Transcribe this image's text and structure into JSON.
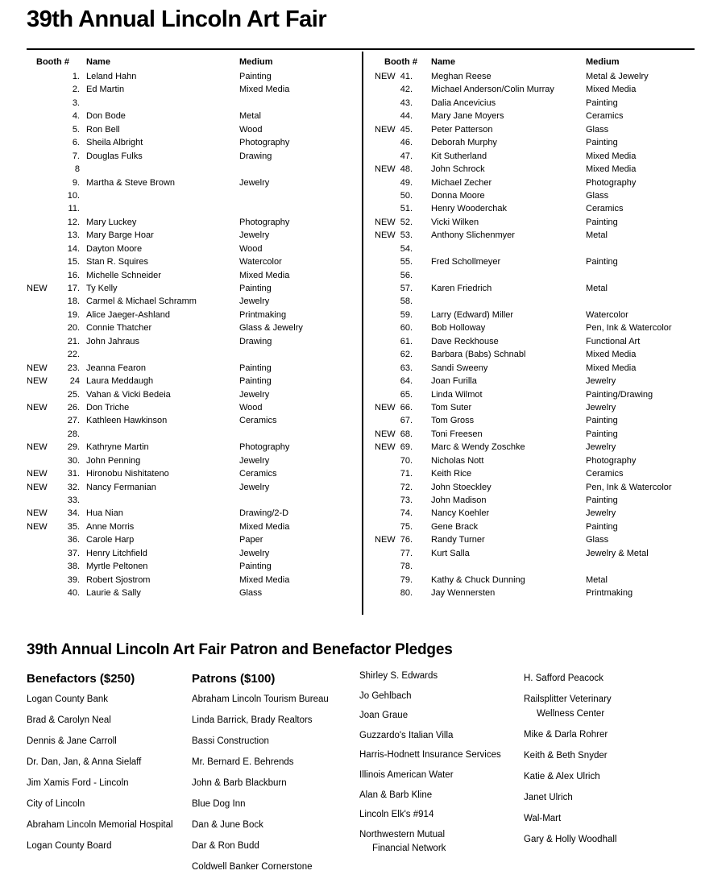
{
  "title": "39th Annual Lincoln Art Fair",
  "booth_table": {
    "headers": {
      "booth": "Booth #",
      "name": "Name",
      "medium": "Medium"
    },
    "new_label": "NEW",
    "left_rows": [
      {
        "num": "1.",
        "name": "Leland Hahn",
        "medium": "Painting"
      },
      {
        "num": "2.",
        "name": "Ed Martin",
        "medium": "Mixed Media"
      },
      {
        "num": "3.",
        "name": "",
        "medium": ""
      },
      {
        "num": "4.",
        "name": "Don Bode",
        "medium": "Metal"
      },
      {
        "num": "5.",
        "name": "Ron Bell",
        "medium": "Wood"
      },
      {
        "num": "6.",
        "name": "Sheila Albright",
        "medium": "Photography"
      },
      {
        "num": "7.",
        "name": "Douglas Fulks",
        "medium": "Drawing"
      },
      {
        "num": "8",
        "name": "",
        "medium": ""
      },
      {
        "num": "9.",
        "name": "Martha & Steve Brown",
        "medium": "Jewelry"
      },
      {
        "num": "10.",
        "name": "",
        "medium": ""
      },
      {
        "num": "11.",
        "name": "",
        "medium": ""
      },
      {
        "num": "12.",
        "name": "Mary Luckey",
        "medium": "Photography"
      },
      {
        "num": "13.",
        "name": "Mary Barge Hoar",
        "medium": "Jewelry"
      },
      {
        "num": "14.",
        "name": "Dayton Moore",
        "medium": "Wood"
      },
      {
        "num": "15.",
        "name": "Stan R. Squires",
        "medium": "Watercolor"
      },
      {
        "num": "16.",
        "name": "Michelle Schneider",
        "medium": "Mixed Media"
      },
      {
        "new": true,
        "num": "17.",
        "name": "Ty Kelly",
        "medium": "Painting"
      },
      {
        "num": "18.",
        "name": "Carmel & Michael Schramm",
        "medium": "Jewelry"
      },
      {
        "num": "19.",
        "name": "Alice Jaeger-Ashland",
        "medium": "Printmaking"
      },
      {
        "num": "20.",
        "name": "Connie Thatcher",
        "medium": "Glass & Jewelry"
      },
      {
        "num": "21.",
        "name": "John Jahraus",
        "medium": "Drawing"
      },
      {
        "num": "22.",
        "name": "",
        "medium": ""
      },
      {
        "new": true,
        "num": "23.",
        "name": "Jeanna Fearon",
        "medium": "Painting"
      },
      {
        "new": true,
        "num": "24",
        "name": "Laura Meddaugh",
        "medium": "Painting"
      },
      {
        "num": "25.",
        "name": "Vahan & Vicki Bedeia",
        "medium": "Jewelry"
      },
      {
        "new": true,
        "num": "26.",
        "name": "Don Triche",
        "medium": "Wood"
      },
      {
        "num": "27.",
        "name": "Kathleen Hawkinson",
        "medium": "Ceramics"
      },
      {
        "num": "28.",
        "name": "",
        "medium": ""
      },
      {
        "new": true,
        "num": "29.",
        "name": "Kathryne Martin",
        "medium": "Photography"
      },
      {
        "num": "30.",
        "name": "John Penning",
        "medium": "Jewelry"
      },
      {
        "new": true,
        "num": "31.",
        "name": "Hironobu Nishitateno",
        "medium": "Ceramics"
      },
      {
        "new": true,
        "num": "32.",
        "name": "Nancy Fermanian",
        "medium": "Jewelry"
      },
      {
        "num": "33.",
        "name": "",
        "medium": ""
      },
      {
        "new": true,
        "num": "34.",
        "name": "Hua Nian",
        "medium": "Drawing/2-D"
      },
      {
        "new": true,
        "num": "35.",
        "name": "Anne Morris",
        "medium": "Mixed Media"
      },
      {
        "num": "36.",
        "name": "Carole Harp",
        "medium": "Paper"
      },
      {
        "num": "37.",
        "name": "Henry Litchfield",
        "medium": "Jewelry"
      },
      {
        "num": "38.",
        "name": "Myrtle Peltonen",
        "medium": "Painting"
      },
      {
        "num": "39.",
        "name": "Robert Sjostrom",
        "medium": "Mixed Media"
      },
      {
        "num": "40.",
        "name": "Laurie & Sally",
        "medium": "Glass"
      }
    ],
    "right_rows": [
      {
        "new": true,
        "num": "41.",
        "name": "Meghan Reese",
        "medium": "Metal & Jewelry"
      },
      {
        "num": "42.",
        "name": "Michael Anderson/Colin Murray",
        "medium": "Mixed Media"
      },
      {
        "num": "43.",
        "name": "Dalia Ancevicius",
        "medium": "Painting"
      },
      {
        "num": "44.",
        "name": "Mary Jane Moyers",
        "medium": "Ceramics"
      },
      {
        "new": true,
        "num": "45.",
        "name": "Peter Patterson",
        "medium": "Glass"
      },
      {
        "num": "46.",
        "name": "Deborah Murphy",
        "medium": "Painting"
      },
      {
        "num": "47.",
        "name": "Kit Sutherland",
        "medium": "Mixed Media"
      },
      {
        "new": true,
        "num": "48.",
        "name": "John Schrock",
        "medium": "Mixed Media"
      },
      {
        "num": "49.",
        "name": "Michael Zecher",
        "medium": "Photography"
      },
      {
        "num": "50.",
        "name": "Donna Moore",
        "medium": "Glass"
      },
      {
        "num": "51.",
        "name": "Henry Wooderchak",
        "medium": "Ceramics"
      },
      {
        "new": true,
        "num": "52.",
        "name": "Vicki Wilken",
        "medium": "Painting"
      },
      {
        "new": true,
        "num": "53.",
        "name": "Anthony Slichenmyer",
        "medium": "Metal"
      },
      {
        "num": "54.",
        "name": "",
        "medium": ""
      },
      {
        "num": "55.",
        "name": "Fred Schollmeyer",
        "medium": "Painting"
      },
      {
        "num": "56.",
        "name": "",
        "medium": ""
      },
      {
        "num": "57.",
        "name": "Karen Friedrich",
        "medium": "Metal"
      },
      {
        "num": "58.",
        "name": "",
        "medium": ""
      },
      {
        "num": "59.",
        "name": "Larry (Edward) Miller",
        "medium": "Watercolor"
      },
      {
        "num": "60.",
        "name": "Bob Holloway",
        "medium": "Pen, Ink & Watercolor"
      },
      {
        "num": "61.",
        "name": "Dave Reckhouse",
        "medium": "Functional Art"
      },
      {
        "num": "62.",
        "name": "Barbara (Babs) Schnabl",
        "medium": "Mixed Media"
      },
      {
        "num": "63.",
        "name": "Sandi Sweeny",
        "medium": "Mixed Media"
      },
      {
        "num": "64.",
        "name": "Joan Furilla",
        "medium": "Jewelry"
      },
      {
        "num": "65.",
        "name": "Linda Wilmot",
        "medium": "Painting/Drawing"
      },
      {
        "new": true,
        "num": "66.",
        "name": "Tom Suter",
        "medium": "Jewelry"
      },
      {
        "num": "67.",
        "name": "Tom Gross",
        "medium": "Painting"
      },
      {
        "new": true,
        "num": "68.",
        "name": "Toni Freesen",
        "medium": "Painting"
      },
      {
        "new": true,
        "num": "69.",
        "name": "Marc & Wendy Zoschke",
        "medium": "Jewelry"
      },
      {
        "num": "70.",
        "name": "Nicholas Nott",
        "medium": "Photography"
      },
      {
        "num": "71.",
        "name": "Keith Rice",
        "medium": "Ceramics"
      },
      {
        "num": "72.",
        "name": "John Stoeckley",
        "medium": "Pen, Ink & Watercolor"
      },
      {
        "num": "73.",
        "name": "John Madison",
        "medium": "Painting"
      },
      {
        "num": "74.",
        "name": "Nancy Koehler",
        "medium": "Jewelry"
      },
      {
        "num": "75.",
        "name": "Gene Brack",
        "medium": "Painting"
      },
      {
        "new": true,
        "num": "76.",
        "name": "Randy Turner",
        "medium": "Glass"
      },
      {
        "num": "77.",
        "name": "Kurt Salla",
        "medium": "Jewelry & Metal"
      },
      {
        "num": "78.",
        "name": "",
        "medium": ""
      },
      {
        "num": "79.",
        "name": "Kathy & Chuck Dunning",
        "medium": "Metal"
      },
      {
        "num": "80.",
        "name": "Jay Wennersten",
        "medium": "Printmaking"
      }
    ]
  },
  "pledges": {
    "title": "39th Annual Lincoln Art Fair Patron and Benefactor Pledges",
    "columns": [
      {
        "header": "Benefactors ($250)",
        "items": [
          "Logan County Bank",
          "Brad & Carolyn Neal",
          "Dennis & Jane Carroll",
          "Dr. Dan, Jan, & Anna Sielaff",
          "Jim Xamis Ford - Lincoln",
          "City of Lincoln",
          "Abraham Lincoln Memorial Hospital",
          "Logan County Board"
        ]
      },
      {
        "header": "Patrons ($100)",
        "items": [
          "Abraham Lincoln Tourism Bureau",
          "Linda Barrick, Brady Realtors",
          "Bassi Construction",
          "Mr. Bernard E. Behrends",
          "John & Barb Blackburn",
          "Blue Dog Inn",
          "Dan & June Bock",
          "Dar & Ron Budd",
          "Coldwell Banker Cornerstone"
        ]
      },
      {
        "header": "",
        "items": [
          "Shirley S. Edwards",
          "Jo Gehlbach",
          "Joan Graue",
          "Guzzardo's Italian Villa",
          "Harris-Hodnett Insurance Services",
          "Illinois American Water",
          "Alan & Barb Kline",
          "Lincoln Elk's #914",
          {
            "lines": [
              "Northwestern Mutual",
              "Financial Network"
            ]
          }
        ]
      },
      {
        "header": "",
        "items": [
          "H. Safford Peacock",
          {
            "lines": [
              "Railsplitter Veterinary",
              "Wellness Center"
            ]
          },
          "Mike & Darla Rohrer",
          "Keith & Beth Snyder",
          "Katie & Alex Ulrich",
          "Janet Ulrich",
          "Wal-Mart",
          "Gary & Holly Woodhall"
        ]
      }
    ]
  }
}
